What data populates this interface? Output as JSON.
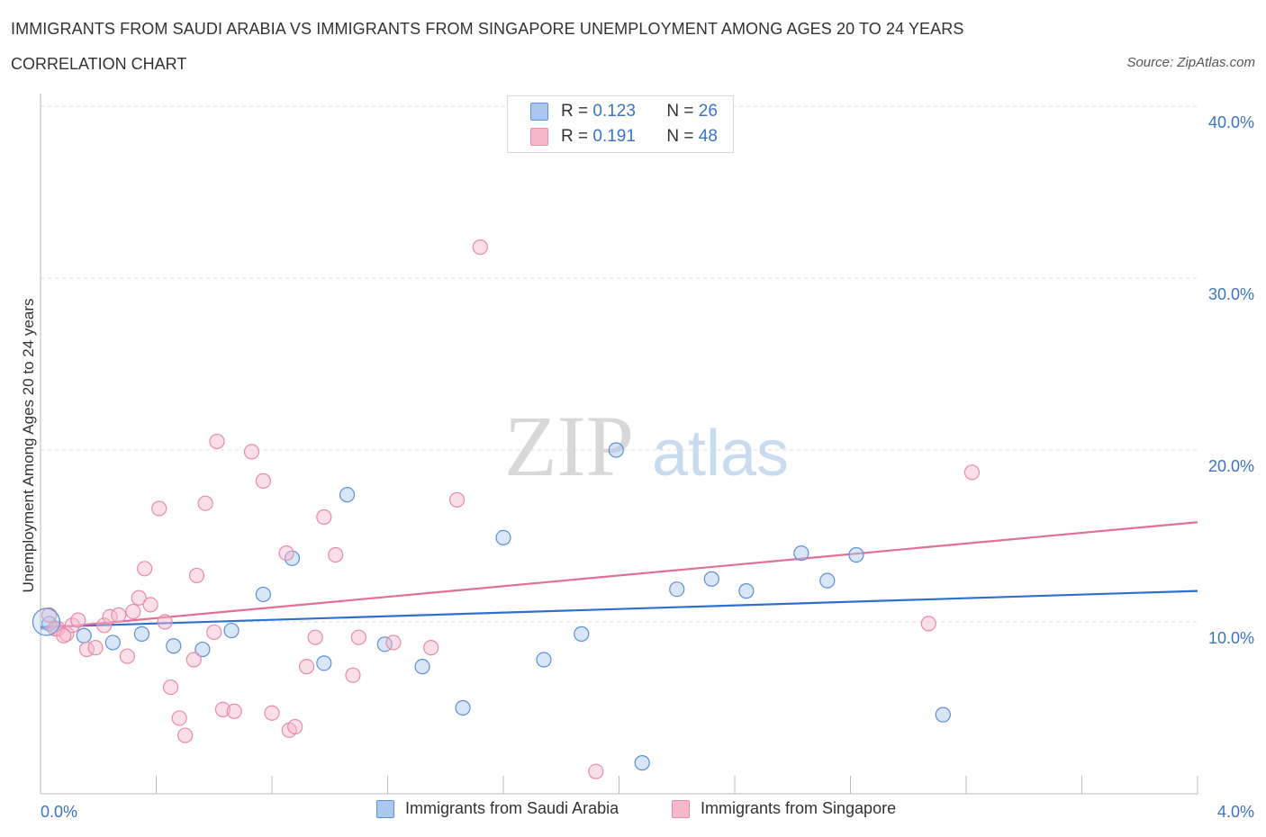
{
  "title": "IMMIGRANTS FROM SAUDI ARABIA VS IMMIGRANTS FROM SINGAPORE UNEMPLOYMENT AMONG AGES 20 TO 24 YEARS",
  "subtitle": "CORRELATION CHART",
  "source": "Source: ZipAtlas.com",
  "watermark": {
    "zip": "ZIP",
    "atlas": "atlas"
  },
  "legend": {
    "row1": {
      "r_label": "R =",
      "r_value": "0.123",
      "n_label": "N =",
      "n_value": "26"
    },
    "row2": {
      "r_label": "R =",
      "r_value": "0.191",
      "n_label": "N =",
      "n_value": "48"
    }
  },
  "colors": {
    "blue_fill": "#aac8f0",
    "blue_stroke": "#5b8fd6",
    "blue_line": "#2f6fd0",
    "pink_fill": "#f6b8cb",
    "pink_stroke": "#e88aa8",
    "pink_line": "#e26f9a",
    "axis_text": "#3b74c6",
    "grid": "#dddddd"
  },
  "chart_data": {
    "type": "scatter",
    "xlabel": "",
    "ylabel": "Unemployment Among Ages 20 to 24 years",
    "xlim": [
      0.0,
      4.0
    ],
    "ylim": [
      0.0,
      40.0
    ],
    "x_tick_labels": {
      "min": "0.0%",
      "max": "4.0%"
    },
    "y_tick_labels": [
      "10.0%",
      "20.0%",
      "30.0%",
      "40.0%"
    ],
    "y_ticks": [
      10,
      20,
      30,
      40
    ],
    "grid": true,
    "series": [
      {
        "name": "Immigrants from Saudi Arabia",
        "color": "blue",
        "points": [
          [
            0.03,
            9.9
          ],
          [
            0.15,
            9.2
          ],
          [
            0.25,
            8.8
          ],
          [
            0.35,
            9.3
          ],
          [
            0.46,
            8.6
          ],
          [
            0.56,
            8.4
          ],
          [
            0.66,
            9.5
          ],
          [
            0.77,
            11.6
          ],
          [
            0.87,
            13.7
          ],
          [
            0.98,
            7.6
          ],
          [
            1.06,
            17.4
          ],
          [
            1.19,
            8.7
          ],
          [
            1.32,
            7.4
          ],
          [
            1.46,
            5.0
          ],
          [
            1.6,
            14.9
          ],
          [
            1.74,
            7.8
          ],
          [
            1.87,
            9.3
          ],
          [
            1.99,
            20.0
          ],
          [
            2.08,
            1.8
          ],
          [
            2.2,
            11.9
          ],
          [
            2.32,
            12.5
          ],
          [
            2.44,
            11.8
          ],
          [
            2.63,
            14.0
          ],
          [
            2.72,
            12.4
          ],
          [
            2.82,
            13.9
          ],
          [
            3.12,
            4.6
          ]
        ],
        "trend": [
          [
            0.0,
            9.7
          ],
          [
            4.0,
            11.8
          ]
        ]
      },
      {
        "name": "Immigrants from Singapore",
        "color": "pink",
        "points": [
          [
            0.03,
            10.4
          ],
          [
            0.06,
            9.6
          ],
          [
            0.09,
            9.3
          ],
          [
            0.11,
            9.8
          ],
          [
            0.13,
            10.1
          ],
          [
            0.16,
            8.4
          ],
          [
            0.19,
            8.5
          ],
          [
            0.22,
            9.8
          ],
          [
            0.24,
            10.3
          ],
          [
            0.27,
            10.4
          ],
          [
            0.3,
            8.0
          ],
          [
            0.32,
            10.6
          ],
          [
            0.34,
            11.4
          ],
          [
            0.36,
            13.1
          ],
          [
            0.38,
            11.0
          ],
          [
            0.41,
            16.6
          ],
          [
            0.43,
            10.0
          ],
          [
            0.45,
            6.2
          ],
          [
            0.48,
            4.4
          ],
          [
            0.5,
            3.4
          ],
          [
            0.53,
            7.8
          ],
          [
            0.54,
            12.7
          ],
          [
            0.57,
            16.9
          ],
          [
            0.6,
            9.4
          ],
          [
            0.61,
            20.5
          ],
          [
            0.63,
            4.9
          ],
          [
            0.67,
            4.8
          ],
          [
            0.73,
            19.9
          ],
          [
            0.77,
            18.2
          ],
          [
            0.8,
            4.7
          ],
          [
            0.85,
            14.0
          ],
          [
            0.86,
            3.7
          ],
          [
            0.88,
            3.9
          ],
          [
            0.92,
            7.4
          ],
          [
            0.95,
            9.1
          ],
          [
            0.98,
            16.1
          ],
          [
            1.02,
            13.9
          ],
          [
            1.08,
            6.9
          ],
          [
            1.1,
            9.1
          ],
          [
            1.22,
            8.8
          ],
          [
            1.35,
            8.5
          ],
          [
            1.44,
            17.1
          ],
          [
            1.52,
            31.8
          ],
          [
            1.92,
            1.3
          ],
          [
            3.07,
            9.9
          ],
          [
            3.22,
            18.7
          ],
          [
            0.05,
            9.6
          ],
          [
            0.08,
            9.2
          ]
        ],
        "trend": [
          [
            0.0,
            9.6
          ],
          [
            4.0,
            15.8
          ]
        ]
      }
    ]
  }
}
